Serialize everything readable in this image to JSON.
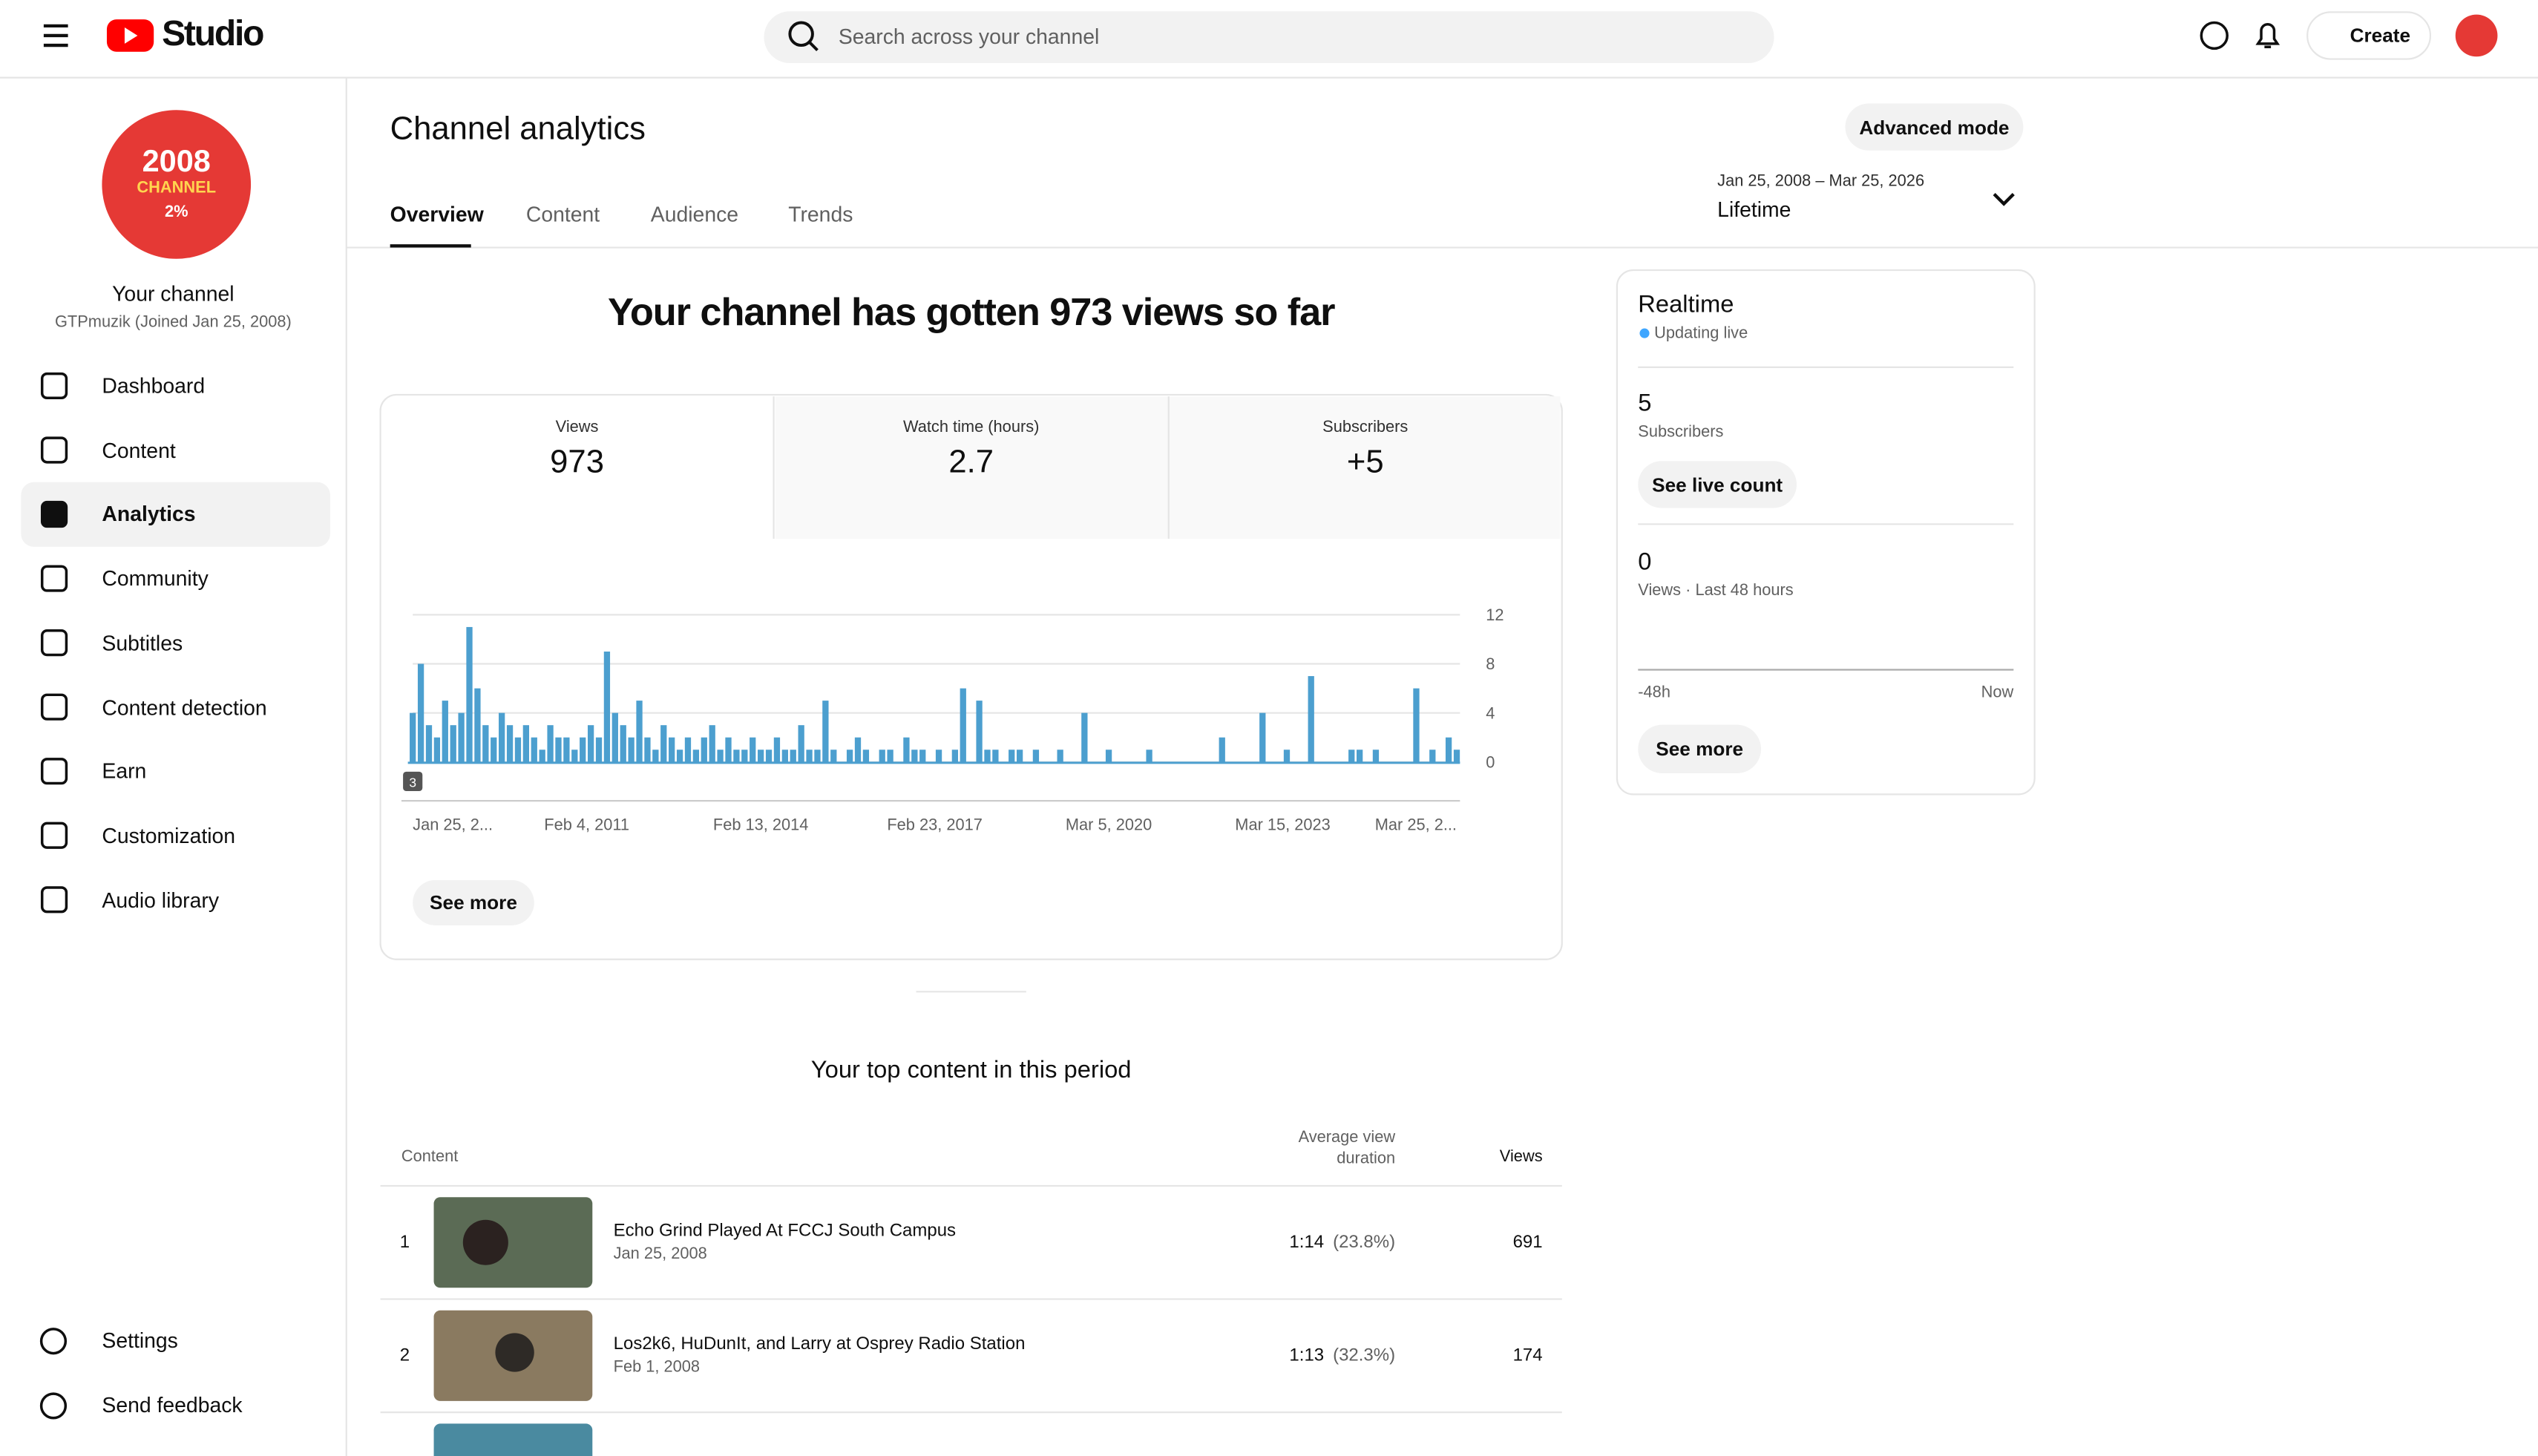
{
  "header": {
    "app_name": "Studio",
    "search_placeholder": "Search across your channel",
    "create_label": "Create"
  },
  "sidebar": {
    "badge": {
      "line1": "2008",
      "line2": "CHANNEL",
      "line3": "2%"
    },
    "channel_title": "Your channel",
    "channel_subtitle": "GTPmuzik (Joined Jan 25, 2008)",
    "nav": [
      {
        "label": "Dashboard",
        "selected": false
      },
      {
        "label": "Content",
        "selected": false
      },
      {
        "label": "Analytics",
        "selected": true
      },
      {
        "label": "Community",
        "selected": false
      },
      {
        "label": "Subtitles",
        "selected": false
      },
      {
        "label": "Content detection",
        "selected": false
      },
      {
        "label": "Earn",
        "selected": false
      },
      {
        "label": "Customization",
        "selected": false
      },
      {
        "label": "Audio library",
        "selected": false
      }
    ],
    "bottom_nav": [
      {
        "label": "Settings"
      },
      {
        "label": "Send feedback"
      }
    ]
  },
  "page": {
    "title": "Channel analytics",
    "advanced_button": "Advanced mode",
    "tabs": [
      {
        "label": "Overview",
        "selected": true
      },
      {
        "label": "Content",
        "selected": false
      },
      {
        "label": "Audience",
        "selected": false
      },
      {
        "label": "Trends",
        "selected": false
      }
    ],
    "date_range": "Jan 25, 2008 – Mar 25, 2026",
    "period": "Lifetime",
    "headline": "Your channel has gotten 973 views so far",
    "metrics": [
      {
        "label": "Views",
        "value": "973"
      },
      {
        "label": "Watch time (hours)",
        "value": "2.7"
      },
      {
        "label": "Subscribers",
        "value": "+5"
      }
    ],
    "chart": {
      "type": "bar",
      "color": "#4c9fcf",
      "ylim": [
        0,
        12
      ],
      "yticks": [
        0,
        4,
        8,
        12
      ],
      "badge": "3",
      "xtick_labels": [
        "Jan 25, 2...",
        "Feb 4, 2011",
        "Feb 13, 2014",
        "Feb 23, 2017",
        "Mar 5, 2020",
        "Mar 15, 2023",
        "Mar 25, 2..."
      ],
      "values": [
        4,
        8,
        3,
        2,
        5,
        3,
        4,
        11,
        6,
        3,
        2,
        4,
        3,
        2,
        3,
        2,
        1,
        3,
        2,
        2,
        1,
        2,
        3,
        2,
        9,
        4,
        3,
        2,
        5,
        2,
        1,
        3,
        2,
        1,
        2,
        1,
        2,
        3,
        1,
        2,
        1,
        1,
        2,
        1,
        1,
        2,
        1,
        1,
        3,
        1,
        1,
        5,
        1,
        0,
        1,
        2,
        1,
        0,
        1,
        1,
        0,
        2,
        1,
        1,
        0,
        1,
        0,
        1,
        6,
        0,
        5,
        1,
        1,
        0,
        1,
        1,
        0,
        1,
        0,
        0,
        1,
        0,
        0,
        4,
        0,
        0,
        1,
        0,
        0,
        0,
        0,
        1,
        0,
        0,
        0,
        0,
        0,
        0,
        0,
        0,
        2,
        0,
        0,
        0,
        0,
        4,
        0,
        0,
        1,
        0,
        0,
        7,
        0,
        0,
        0,
        0,
        1,
        1,
        0,
        1,
        0,
        0,
        0,
        0,
        6,
        0,
        1,
        0,
        2,
        1
      ]
    },
    "see_more": "See more",
    "top_content": {
      "title": "Your top content in this period",
      "col_content": "Content",
      "col_duration": "Average view duration",
      "col_views": "Views",
      "rows": [
        {
          "rank": "1",
          "title": "Echo Grind Played At FCCJ South Campus",
          "date": "Jan 25, 2008",
          "duration": "1:14",
          "percent": "(23.8%)",
          "views": "691"
        },
        {
          "rank": "2",
          "title": "Los2k6, HuDunIt, and Larry at Osprey Radio Station",
          "date": "Feb 1, 2008",
          "duration": "1:13",
          "percent": "(32.3%)",
          "views": "174"
        }
      ]
    }
  },
  "realtime": {
    "title": "Realtime",
    "status": "Updating live",
    "subscribers": "5",
    "subscribers_label": "Subscribers",
    "live_count_button": "See live count",
    "views": "0",
    "views_label": "Views · Last 48 hours",
    "axis_start": "-48h",
    "axis_end": "Now",
    "see_more": "See more"
  }
}
